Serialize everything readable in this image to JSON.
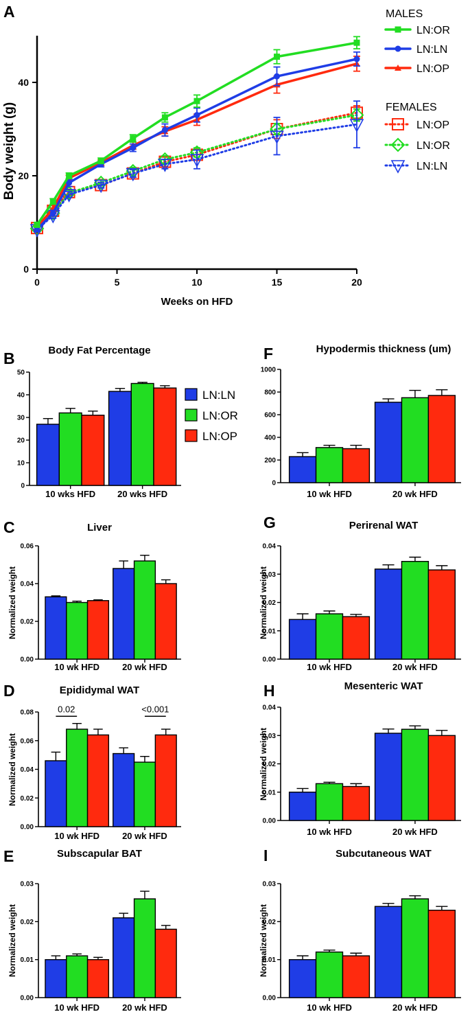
{
  "colors": {
    "blue": "#1f3de6",
    "green": "#22dd22",
    "red": "#ff2a0e"
  },
  "chart_data": [
    {
      "id": "A",
      "type": "line",
      "panel_label": "A",
      "xlabel": "Weeks on HFD",
      "ylabel": "Body weight (g)",
      "xlim": [
        0,
        20
      ],
      "ylim": [
        0,
        50
      ],
      "xticks": [
        0,
        5,
        10,
        15,
        20
      ],
      "yticks": [
        0,
        20,
        40
      ],
      "legend_groups": [
        {
          "heading": "MALES",
          "entries": [
            "LN:OR",
            "LN:LN",
            "LN:OP"
          ]
        },
        {
          "heading": "FEMALES",
          "entries": [
            "LN:OP",
            "LN:OR",
            "LN:LN"
          ]
        }
      ],
      "x": [
        0,
        1,
        2,
        4,
        6,
        8,
        10,
        15,
        20
      ],
      "series": [
        {
          "name": "LN:OR",
          "group": "MALES",
          "color": "green",
          "marker": "square",
          "style": "solid",
          "values": [
            9.5,
            14.5,
            20,
            23.2,
            28,
            32.5,
            36,
            45.5,
            48.5
          ],
          "errors": [
            0.5,
            0.6,
            0.6,
            0.6,
            0.8,
            1.0,
            1.3,
            1.5,
            1.3
          ]
        },
        {
          "name": "LN:LN",
          "group": "MALES",
          "color": "blue",
          "marker": "circle",
          "style": "solid",
          "values": [
            8.5,
            12,
            18.5,
            22.5,
            26,
            29.8,
            33,
            41.3,
            45
          ],
          "errors": [
            0.5,
            0.6,
            0.8,
            0.6,
            0.8,
            1.3,
            1.5,
            2.0,
            1.5
          ]
        },
        {
          "name": "LN:OP",
          "group": "MALES",
          "color": "red",
          "marker": "triangle",
          "style": "solid",
          "values": [
            9,
            13,
            19.5,
            22.8,
            26.5,
            29.5,
            32,
            39.5,
            44
          ],
          "errors": [
            0.5,
            0.6,
            0.6,
            0.6,
            0.8,
            1.0,
            1.2,
            1.8,
            1.6
          ]
        },
        {
          "name": "LN:OP",
          "group": "FEMALES",
          "color": "red",
          "marker": "open-square",
          "style": "dotted",
          "values": [
            8.8,
            12.5,
            16.5,
            18,
            20.5,
            23,
            24.5,
            30,
            33.5
          ],
          "errors": [
            0.5,
            0.6,
            0.6,
            0.6,
            0.8,
            1.0,
            1.2,
            2.0,
            1.5
          ]
        },
        {
          "name": "LN:OR",
          "group": "FEMALES",
          "color": "green",
          "marker": "open-diamond",
          "style": "dotted",
          "values": [
            8.7,
            12,
            16.3,
            18.5,
            21,
            23.5,
            25,
            30,
            33
          ],
          "errors": [
            0.5,
            0.6,
            0.6,
            0.6,
            0.8,
            0.8,
            1.0,
            1.2,
            1.3
          ]
        },
        {
          "name": "LN:LN",
          "group": "FEMALES",
          "color": "blue",
          "marker": "open-triangle-down",
          "style": "dotted",
          "values": [
            8.5,
            11.5,
            16,
            18,
            20.5,
            22.5,
            23.5,
            28.5,
            31
          ],
          "errors": [
            0.5,
            0.6,
            0.6,
            0.6,
            0.8,
            1.0,
            2.0,
            4.0,
            5.0
          ]
        }
      ]
    },
    {
      "id": "B",
      "type": "bar",
      "panel_label": "B",
      "title": "Body Fat Percentage",
      "ylabel": "",
      "categories": [
        "10 wks HFD",
        "20 wks HFD"
      ],
      "ylim": [
        0,
        50
      ],
      "yticks": [
        "0",
        "10",
        "20",
        "30",
        "40",
        "50"
      ],
      "legend": [
        "LN:LN",
        "LN:OR",
        "LN:OP"
      ],
      "series": [
        {
          "name": "LN:LN",
          "color": "blue",
          "values": [
            27,
            41.5
          ],
          "errors": [
            2.5,
            1.3
          ]
        },
        {
          "name": "LN:OR",
          "color": "green",
          "values": [
            32,
            45
          ],
          "errors": [
            2.0,
            0.5
          ]
        },
        {
          "name": "LN:OP",
          "color": "red",
          "values": [
            31,
            43
          ],
          "errors": [
            1.8,
            1.0
          ]
        }
      ]
    },
    {
      "id": "F",
      "type": "bar",
      "panel_label": "F",
      "title": "Hypodermis thickness (um)",
      "ylabel": "",
      "categories": [
        "10 wk HFD",
        "20 wk HFD"
      ],
      "ylim": [
        0,
        1000
      ],
      "yticks": [
        "0",
        "200",
        "400",
        "600",
        "800",
        "1000"
      ],
      "series": [
        {
          "name": "LN:LN",
          "color": "blue",
          "values": [
            230,
            710
          ],
          "errors": [
            35,
            30
          ]
        },
        {
          "name": "LN:OR",
          "color": "green",
          "values": [
            310,
            750
          ],
          "errors": [
            20,
            65
          ]
        },
        {
          "name": "LN:OP",
          "color": "red",
          "values": [
            300,
            770
          ],
          "errors": [
            30,
            50
          ]
        }
      ]
    },
    {
      "id": "C",
      "type": "bar",
      "panel_label": "C",
      "title": "Liver",
      "ylabel": "Normalized weight",
      "categories": [
        "10 wk HFD",
        "20 wk HFD"
      ],
      "ylim": [
        0,
        0.06
      ],
      "yticks": [
        "0.00",
        "0.02",
        "0.04",
        "0.06"
      ],
      "series": [
        {
          "name": "LN:LN",
          "color": "blue",
          "values": [
            0.033,
            0.048
          ],
          "errors": [
            0.0005,
            0.004
          ]
        },
        {
          "name": "LN:OR",
          "color": "green",
          "values": [
            0.03,
            0.052
          ],
          "errors": [
            0.0007,
            0.003
          ]
        },
        {
          "name": "LN:OP",
          "color": "red",
          "values": [
            0.031,
            0.04
          ],
          "errors": [
            0.0004,
            0.002
          ]
        }
      ]
    },
    {
      "id": "G",
      "type": "bar",
      "panel_label": "G",
      "title": "Perirenal WAT",
      "ylabel": "Normalized weight",
      "categories": [
        "10 wk HFD",
        "20 wk HFD"
      ],
      "ylim": [
        0,
        0.04
      ],
      "yticks": [
        "0.00",
        "0.01",
        "0.02",
        "0.03",
        "0.04"
      ],
      "series": [
        {
          "name": "LN:LN",
          "color": "blue",
          "values": [
            0.014,
            0.0318
          ],
          "errors": [
            0.002,
            0.0015
          ]
        },
        {
          "name": "LN:OR",
          "color": "green",
          "values": [
            0.016,
            0.0345
          ],
          "errors": [
            0.001,
            0.0015
          ]
        },
        {
          "name": "LN:OP",
          "color": "red",
          "values": [
            0.015,
            0.0315
          ],
          "errors": [
            0.0008,
            0.0015
          ]
        }
      ]
    },
    {
      "id": "D",
      "type": "bar",
      "panel_label": "D",
      "title": "Epididymal WAT",
      "ylabel": "Normalized weight",
      "categories": [
        "10 wk HFD",
        "20 wk HFD"
      ],
      "ylim": [
        0,
        0.08
      ],
      "yticks": [
        "0.00",
        "0.02",
        "0.04",
        "0.06",
        "0.08"
      ],
      "annotations": [
        {
          "text": "0.02",
          "category": 0,
          "from": 0,
          "to": 1,
          "y": 0.077
        },
        {
          "text": "<0.001",
          "category": 1,
          "from": 1,
          "to": 2,
          "y": 0.077
        }
      ],
      "series": [
        {
          "name": "LN:LN",
          "color": "blue",
          "values": [
            0.046,
            0.051
          ],
          "errors": [
            0.006,
            0.004
          ]
        },
        {
          "name": "LN:OR",
          "color": "green",
          "values": [
            0.068,
            0.045
          ],
          "errors": [
            0.004,
            0.004
          ]
        },
        {
          "name": "LN:OP",
          "color": "red",
          "values": [
            0.064,
            0.064
          ],
          "errors": [
            0.004,
            0.004
          ]
        }
      ]
    },
    {
      "id": "H",
      "type": "bar",
      "panel_label": "H",
      "title": "Mesenteric WAT",
      "ylabel": "Normalized weight",
      "categories": [
        "10 wk HFD",
        "20 wk HFD"
      ],
      "ylim": [
        0,
        0.04
      ],
      "yticks": [
        "0.00",
        "0.01",
        "0.02",
        "0.03",
        "0.04"
      ],
      "series": [
        {
          "name": "LN:LN",
          "color": "blue",
          "values": [
            0.01,
            0.0308
          ],
          "errors": [
            0.0013,
            0.0015
          ]
        },
        {
          "name": "LN:OR",
          "color": "green",
          "values": [
            0.013,
            0.0322
          ],
          "errors": [
            0.0005,
            0.0012
          ]
        },
        {
          "name": "LN:OP",
          "color": "red",
          "values": [
            0.012,
            0.03
          ],
          "errors": [
            0.001,
            0.0018
          ]
        }
      ]
    },
    {
      "id": "E",
      "type": "bar",
      "panel_label": "E",
      "title": "Subscapular BAT",
      "ylabel": "Normalized weight",
      "categories": [
        "10 wk HFD",
        "20 wk HFD"
      ],
      "ylim": [
        0,
        0.03
      ],
      "yticks": [
        "0.00",
        "0.01",
        "0.02",
        "0.03"
      ],
      "series": [
        {
          "name": "LN:LN",
          "color": "blue",
          "values": [
            0.01,
            0.021
          ],
          "errors": [
            0.001,
            0.0012
          ]
        },
        {
          "name": "LN:OR",
          "color": "green",
          "values": [
            0.011,
            0.026
          ],
          "errors": [
            0.0005,
            0.002
          ]
        },
        {
          "name": "LN:OP",
          "color": "red",
          "values": [
            0.01,
            0.018
          ],
          "errors": [
            0.0006,
            0.001
          ]
        }
      ]
    },
    {
      "id": "I",
      "type": "bar",
      "panel_label": "I",
      "title": "Subcutaneous WAT",
      "ylabel": "Normalized weight",
      "categories": [
        "10 wk HFD",
        "20 wk HFD"
      ],
      "ylim": [
        0,
        0.03
      ],
      "yticks": [
        "0.00",
        "0.01",
        "0.02",
        "0.03"
      ],
      "series": [
        {
          "name": "LN:LN",
          "color": "blue",
          "values": [
            0.01,
            0.024
          ],
          "errors": [
            0.001,
            0.0008
          ]
        },
        {
          "name": "LN:OR",
          "color": "green",
          "values": [
            0.012,
            0.026
          ],
          "errors": [
            0.0005,
            0.0008
          ]
        },
        {
          "name": "LN:OP",
          "color": "red",
          "values": [
            0.011,
            0.023
          ],
          "errors": [
            0.0007,
            0.001
          ]
        }
      ]
    }
  ]
}
